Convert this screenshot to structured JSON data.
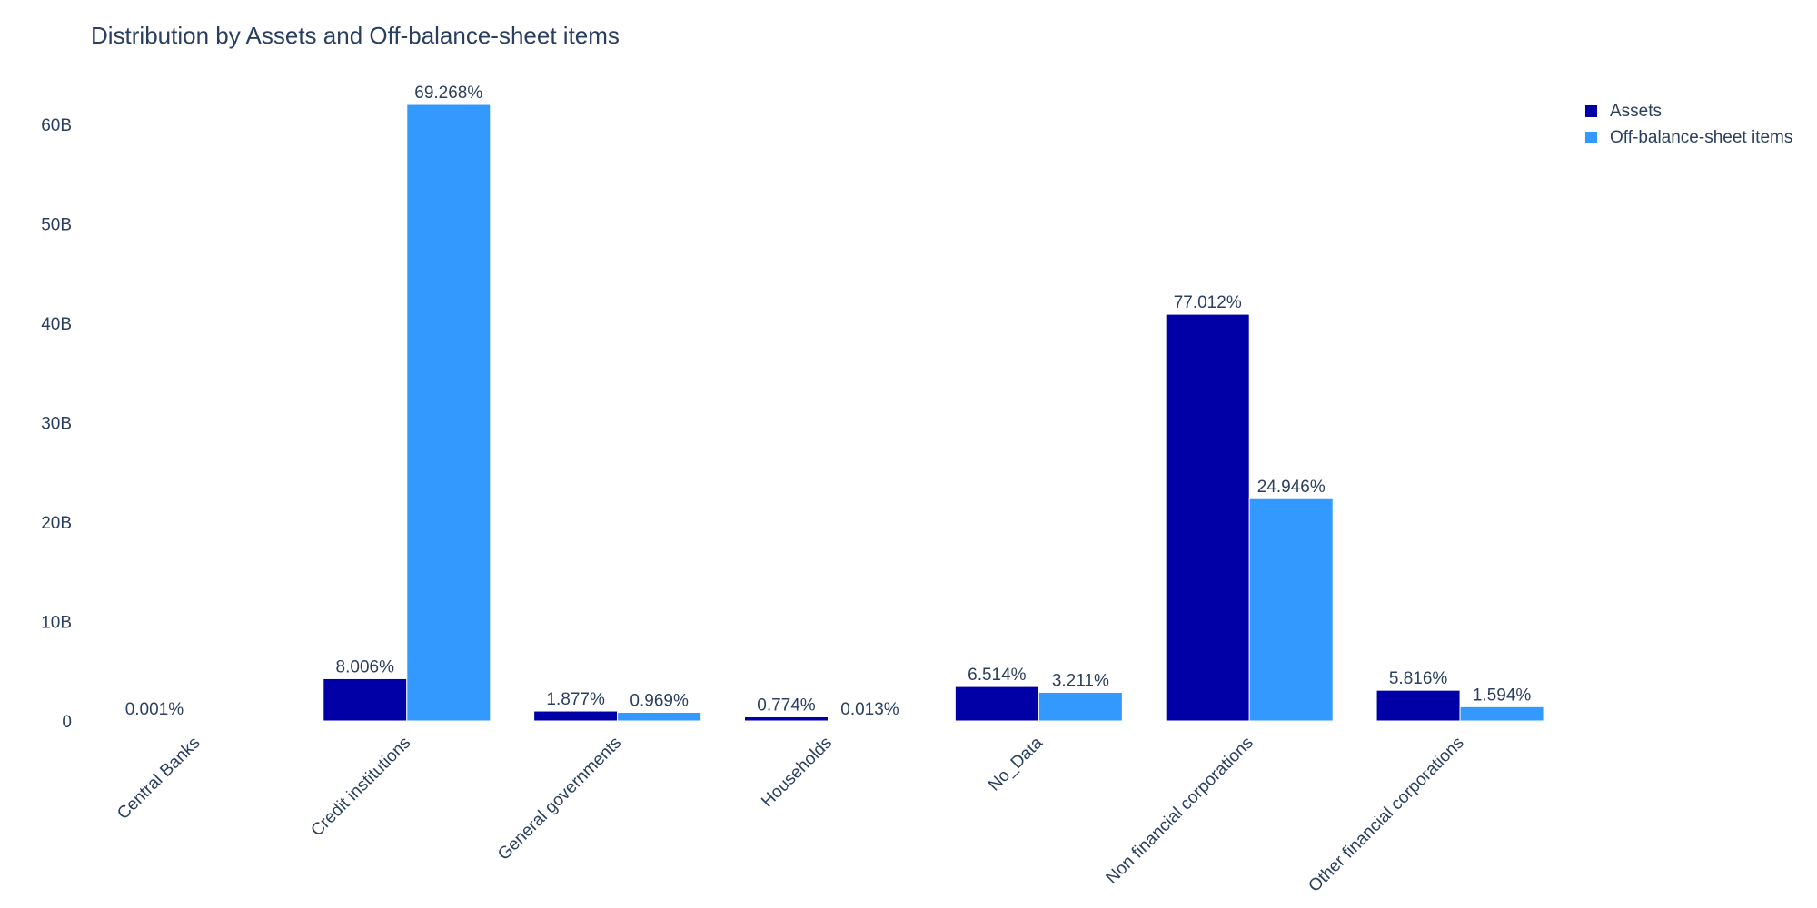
{
  "chart_data": {
    "type": "bar",
    "title": "Distribution by Assets and Off-balance-sheet items",
    "xlabel": "",
    "ylabel": "",
    "categories": [
      "Central Banks",
      "Credit institutions",
      "General governments",
      "Households",
      "No_Data",
      "Non financial corporations",
      "Other financial corporations"
    ],
    "series": [
      {
        "name": "Assets",
        "color": "#0000a6",
        "values": [
          0.0005,
          4.25,
          1.0,
          0.41,
          3.46,
          40.9,
          3.09
        ],
        "labels": [
          "0.001%",
          "8.006%",
          "1.877%",
          "0.774%",
          "6.514%",
          "77.012%",
          "5.816%"
        ]
      },
      {
        "name": "Off-balance-sheet items",
        "color": "#3399ff",
        "values": [
          0,
          62.0,
          0.87,
          0.012,
          2.88,
          22.35,
          1.43
        ],
        "labels": [
          "",
          "69.268%",
          "0.969%",
          "0.013%",
          "3.211%",
          "24.946%",
          "1.594%"
        ]
      }
    ],
    "yticks": [
      {
        "value": 0,
        "label": "0"
      },
      {
        "value": 10,
        "label": "10B"
      },
      {
        "value": 20,
        "label": "20B"
      },
      {
        "value": 30,
        "label": "30B"
      },
      {
        "value": 40,
        "label": "40B"
      },
      {
        "value": 50,
        "label": "50B"
      },
      {
        "value": 60,
        "label": "60B"
      }
    ],
    "ylim": [
      0,
      65.2
    ],
    "yunit": "B",
    "legend_position": "top-right",
    "grid": false
  }
}
